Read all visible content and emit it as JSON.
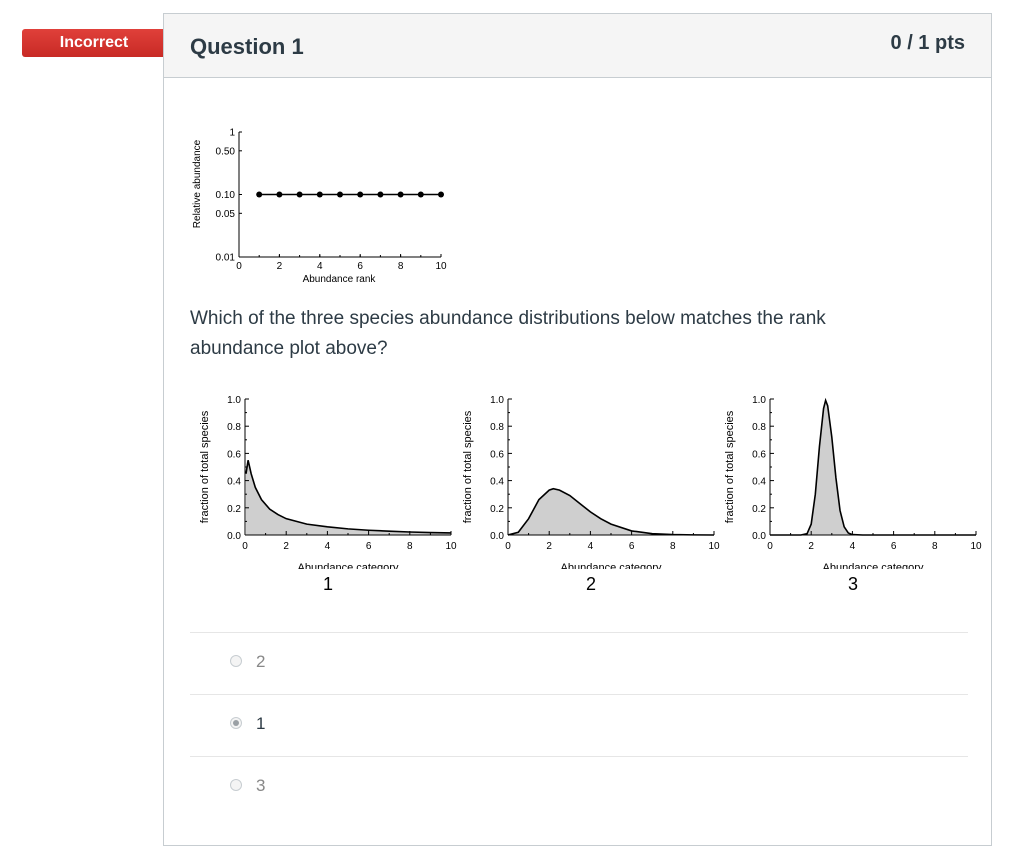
{
  "result_badge": "Incorrect",
  "question": {
    "title": "Question 1",
    "points": "0 / 1 pts",
    "text": "Which of the three species abundance distributions below matches the rank abundance plot above?"
  },
  "rank_plot": {
    "chart_data": {
      "type": "line",
      "title": "",
      "xlabel": "Abundance rank",
      "ylabel": "Relative abundance",
      "x_ticks": [
        "0",
        "2",
        "4",
        "6",
        "8",
        "10"
      ],
      "y_ticks": [
        "1",
        "0.50",
        "0.10",
        "0.05",
        "0.01"
      ],
      "y_scale": "log",
      "xlim": [
        0,
        10
      ],
      "ylim": [
        0.01,
        1
      ],
      "x": [
        1,
        2,
        3,
        4,
        5,
        6,
        7,
        8,
        9,
        10
      ],
      "y": [
        0.1,
        0.1,
        0.1,
        0.1,
        0.1,
        0.1,
        0.1,
        0.1,
        0.1,
        0.1
      ]
    }
  },
  "distributions": {
    "xlabel": "Abundance category",
    "ylabel": "fraction of total species",
    "x_ticks": [
      "0",
      "2",
      "4",
      "6",
      "8",
      "10"
    ],
    "y_ticks": [
      "1.0",
      "0.8",
      "0.6",
      "0.4",
      "0.2",
      "0.0"
    ],
    "labels": [
      "1",
      "2",
      "3"
    ],
    "chart_data": [
      {
        "type": "area",
        "xlim": [
          0,
          10
        ],
        "ylim": [
          0,
          1
        ],
        "x": [
          0.05,
          0.15,
          0.3,
          0.5,
          0.8,
          1.2,
          1.6,
          2,
          3,
          4,
          5,
          6,
          7,
          8,
          9,
          10
        ],
        "y": [
          0.45,
          0.55,
          0.45,
          0.35,
          0.26,
          0.19,
          0.15,
          0.12,
          0.08,
          0.06,
          0.045,
          0.035,
          0.028,
          0.022,
          0.018,
          0.015
        ]
      },
      {
        "type": "area",
        "xlim": [
          0,
          10
        ],
        "ylim": [
          0,
          1
        ],
        "x": [
          0,
          0.5,
          1,
          1.5,
          2,
          2.2,
          2.5,
          3,
          3.5,
          4,
          4.5,
          5,
          6,
          7,
          8,
          9,
          10
        ],
        "y": [
          0,
          0.02,
          0.12,
          0.26,
          0.33,
          0.34,
          0.33,
          0.29,
          0.23,
          0.17,
          0.12,
          0.08,
          0.03,
          0.01,
          0.003,
          0.001,
          0
        ]
      },
      {
        "type": "area",
        "xlim": [
          0,
          10
        ],
        "ylim": [
          0,
          1
        ],
        "x": [
          0,
          1.5,
          1.8,
          2,
          2.2,
          2.4,
          2.6,
          2.7,
          2.8,
          3,
          3.2,
          3.4,
          3.6,
          3.8,
          4,
          4.5,
          10
        ],
        "y": [
          0,
          0,
          0.01,
          0.08,
          0.3,
          0.65,
          0.93,
          0.99,
          0.95,
          0.72,
          0.42,
          0.18,
          0.06,
          0.015,
          0.003,
          0,
          0
        ]
      }
    ]
  },
  "answers": [
    {
      "label": "2",
      "selected": false
    },
    {
      "label": "1",
      "selected": true
    },
    {
      "label": "3",
      "selected": false
    }
  ]
}
